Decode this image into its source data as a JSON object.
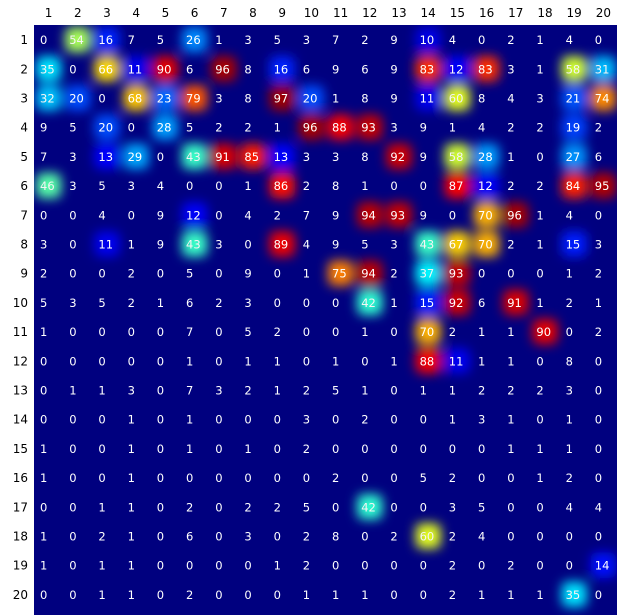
{
  "chart_data": {
    "type": "heatmap",
    "title": "",
    "xlabel": "",
    "ylabel": "",
    "x_labels": [
      "1",
      "2",
      "3",
      "4",
      "5",
      "6",
      "7",
      "8",
      "9",
      "10",
      "11",
      "12",
      "13",
      "14",
      "15",
      "16",
      "17",
      "18",
      "19",
      "20"
    ],
    "y_labels": [
      "1",
      "2",
      "3",
      "4",
      "5",
      "6",
      "7",
      "8",
      "9",
      "10",
      "11",
      "12",
      "13",
      "14",
      "15",
      "16",
      "17",
      "18",
      "19",
      "20"
    ],
    "x_tick_position": "top",
    "colormap": "jet",
    "value_range": [
      0,
      100
    ],
    "grid": false,
    "values": [
      [
        0,
        54,
        16,
        7,
        5,
        26,
        1,
        3,
        5,
        3,
        7,
        2,
        9,
        10,
        4,
        0,
        2,
        1,
        4,
        0
      ],
      [
        35,
        0,
        66,
        11,
        90,
        6,
        96,
        8,
        16,
        6,
        9,
        6,
        9,
        83,
        12,
        83,
        3,
        1,
        58,
        31
      ],
      [
        32,
        20,
        0,
        68,
        23,
        79,
        3,
        8,
        97,
        20,
        1,
        8,
        9,
        11,
        60,
        8,
        4,
        3,
        21,
        74
      ],
      [
        9,
        5,
        20,
        0,
        28,
        5,
        2,
        2,
        1,
        96,
        88,
        93,
        3,
        9,
        1,
        4,
        2,
        2,
        19,
        2
      ],
      [
        7,
        3,
        13,
        29,
        0,
        43,
        91,
        85,
        13,
        3,
        3,
        8,
        92,
        9,
        58,
        28,
        1,
        0,
        27,
        6
      ],
      [
        46,
        3,
        5,
        3,
        4,
        0,
        0,
        1,
        86,
        2,
        8,
        1,
        0,
        0,
        87,
        12,
        2,
        2,
        84,
        95
      ],
      [
        0,
        0,
        4,
        0,
        9,
        12,
        0,
        4,
        2,
        7,
        9,
        94,
        93,
        9,
        0,
        70,
        96,
        1,
        4,
        0
      ],
      [
        3,
        0,
        11,
        1,
        9,
        43,
        3,
        0,
        89,
        4,
        9,
        5,
        3,
        43,
        67,
        70,
        2,
        1,
        15,
        3
      ],
      [
        2,
        0,
        0,
        2,
        0,
        5,
        0,
        9,
        0,
        1,
        75,
        94,
        2,
        37,
        93,
        0,
        0,
        0,
        1,
        2
      ],
      [
        5,
        3,
        5,
        2,
        1,
        6,
        2,
        3,
        0,
        0,
        0,
        42,
        1,
        15,
        92,
        6,
        91,
        1,
        2,
        1
      ],
      [
        1,
        0,
        0,
        0,
        0,
        7,
        0,
        5,
        2,
        0,
        0,
        1,
        0,
        70,
        2,
        1,
        1,
        90,
        0,
        2
      ],
      [
        0,
        0,
        0,
        0,
        0,
        1,
        0,
        1,
        1,
        0,
        1,
        0,
        1,
        88,
        11,
        1,
        1,
        0,
        8,
        0
      ],
      [
        0,
        1,
        1,
        3,
        0,
        7,
        3,
        2,
        1,
        2,
        5,
        1,
        0,
        1,
        1,
        2,
        2,
        2,
        3,
        0
      ],
      [
        0,
        0,
        0,
        1,
        0,
        1,
        0,
        0,
        0,
        3,
        0,
        2,
        0,
        0,
        1,
        3,
        1,
        0,
        1,
        0
      ],
      [
        1,
        0,
        0,
        1,
        0,
        1,
        0,
        1,
        0,
        2,
        0,
        0,
        0,
        0,
        0,
        0,
        1,
        1,
        1,
        0
      ],
      [
        1,
        0,
        0,
        1,
        0,
        0,
        0,
        0,
        0,
        0,
        2,
        0,
        0,
        5,
        2,
        0,
        0,
        1,
        2,
        0
      ],
      [
        0,
        0,
        1,
        1,
        0,
        2,
        0,
        2,
        2,
        5,
        0,
        42,
        0,
        0,
        3,
        5,
        0,
        0,
        4,
        4
      ],
      [
        1,
        0,
        2,
        1,
        0,
        6,
        0,
        3,
        0,
        2,
        8,
        0,
        2,
        60,
        2,
        4,
        0,
        0,
        0,
        0
      ],
      [
        1,
        0,
        1,
        1,
        0,
        0,
        0,
        0,
        1,
        2,
        0,
        0,
        0,
        0,
        2,
        0,
        2,
        0,
        0,
        14
      ],
      [
        0,
        0,
        1,
        1,
        0,
        2,
        0,
        0,
        0,
        1,
        1,
        1,
        0,
        0,
        2,
        1,
        1,
        1,
        35,
        0
      ]
    ]
  }
}
